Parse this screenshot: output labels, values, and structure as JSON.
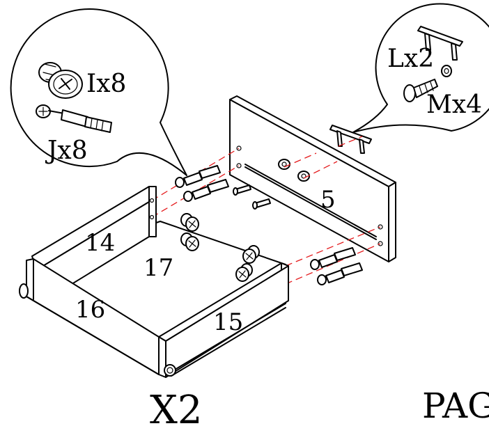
{
  "callouts": {
    "left": {
      "part_i": "Ix8",
      "part_j": "Jx8"
    },
    "right": {
      "part_l": "Lx2",
      "part_m": "Mx4"
    }
  },
  "panels": {
    "panel_5": "5",
    "panel_14": "14",
    "panel_15": "15",
    "panel_16": "16",
    "panel_17": "17"
  },
  "footer": {
    "quantity": "X2",
    "page_label": "PAGE"
  },
  "colors": {
    "line": "#000000",
    "guide_dash": "#e41a1c",
    "background": "#ffffff"
  }
}
